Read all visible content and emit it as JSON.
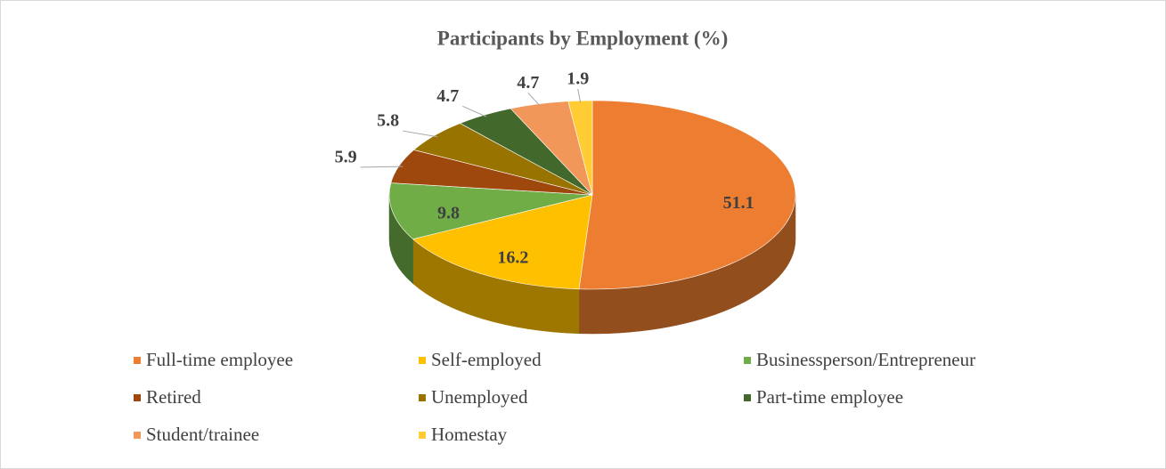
{
  "chart_data": {
    "type": "pie3d",
    "title": "Participants by Employment (%)",
    "categories": [
      "Full-time employee",
      "Self-employed",
      "Businessperson/Entrepreneur",
      "Retired",
      "Unemployed",
      "Part-time employee",
      "Student/trainee",
      "Homestay"
    ],
    "values": [
      51.1,
      16.2,
      9.8,
      5.9,
      5.8,
      4.7,
      4.7,
      1.9
    ],
    "colors": [
      "#ED7D31",
      "#FFC000",
      "#70AD47",
      "#9E480E",
      "#997300",
      "#43682B",
      "#F1975A",
      "#FFCD33"
    ],
    "legend": "bottom"
  }
}
